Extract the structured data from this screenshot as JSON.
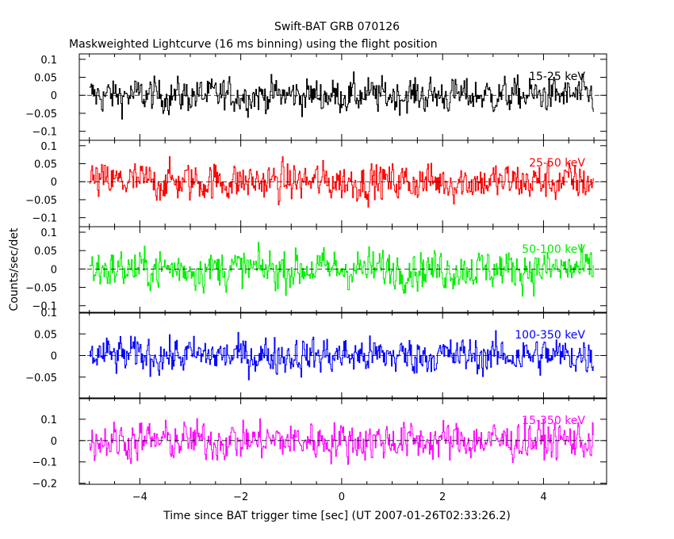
{
  "chart_data": {
    "type": "line",
    "title": "Swift-BAT GRB 070126",
    "subtitle": "Maskweighted Lightcurve (16 ms binning) using the flight position",
    "xlabel": "Time since BAT trigger time [sec] (UT 2007-01-26T02:33:26.2)",
    "ylabel": "Counts/sec/det",
    "xlim": [
      -5.2,
      5.25
    ],
    "x_ticks": [
      -4,
      -2,
      0,
      2,
      4
    ],
    "x_tick_labels": [
      "−4",
      "−2",
      "0",
      "2",
      "4"
    ],
    "x_range_data": [
      -5.0,
      5.0
    ],
    "bin_width": 0.016,
    "grid": false,
    "panels": [
      {
        "band": "15-25 keV",
        "color": "#000000",
        "ylim": [
          -0.125,
          0.115
        ],
        "y_ticks": [
          -0.1,
          -0.05,
          0,
          0.05,
          0.1
        ],
        "y_tick_labels": [
          "−0.1",
          "−0.05",
          "0",
          "0.05",
          "0.1"
        ],
        "noise_amplitude": 0.045
      },
      {
        "band": "25-50 keV",
        "color": "#ff0000",
        "ylim": [
          -0.125,
          0.115
        ],
        "y_ticks": [
          -0.1,
          -0.05,
          0,
          0.05,
          0.1
        ],
        "y_tick_labels": [
          "−0.1",
          "−0.05",
          "0",
          "0.05",
          "0.1"
        ],
        "noise_amplitude": 0.05
      },
      {
        "band": "50-100 keV",
        "color": "#00ee00",
        "ylim": [
          -0.12,
          0.115
        ],
        "y_ticks": [
          -0.1,
          -0.05,
          0,
          0.05,
          0.1
        ],
        "y_tick_labels": [
          "−0.1",
          "−0.05",
          "0",
          "0.05",
          "0.1"
        ],
        "noise_amplitude": 0.05
      },
      {
        "band": "100-350 keV",
        "color": "#0000ff",
        "ylim": [
          -0.1,
          0.1
        ],
        "y_ticks": [
          -0.05,
          0,
          0.05,
          0.1
        ],
        "y_tick_labels": [
          "−0.05",
          "0",
          "0.05",
          "0.1"
        ],
        "noise_amplitude": 0.04
      },
      {
        "band": "15-350 keV",
        "color": "#ff00ff",
        "ylim": [
          -0.205,
          0.2
        ],
        "y_ticks": [
          -0.2,
          -0.1,
          0,
          0.1
        ],
        "y_tick_labels": [
          "−0.2",
          "−0.1",
          "0",
          "0.1"
        ],
        "noise_amplitude": 0.085
      }
    ]
  }
}
